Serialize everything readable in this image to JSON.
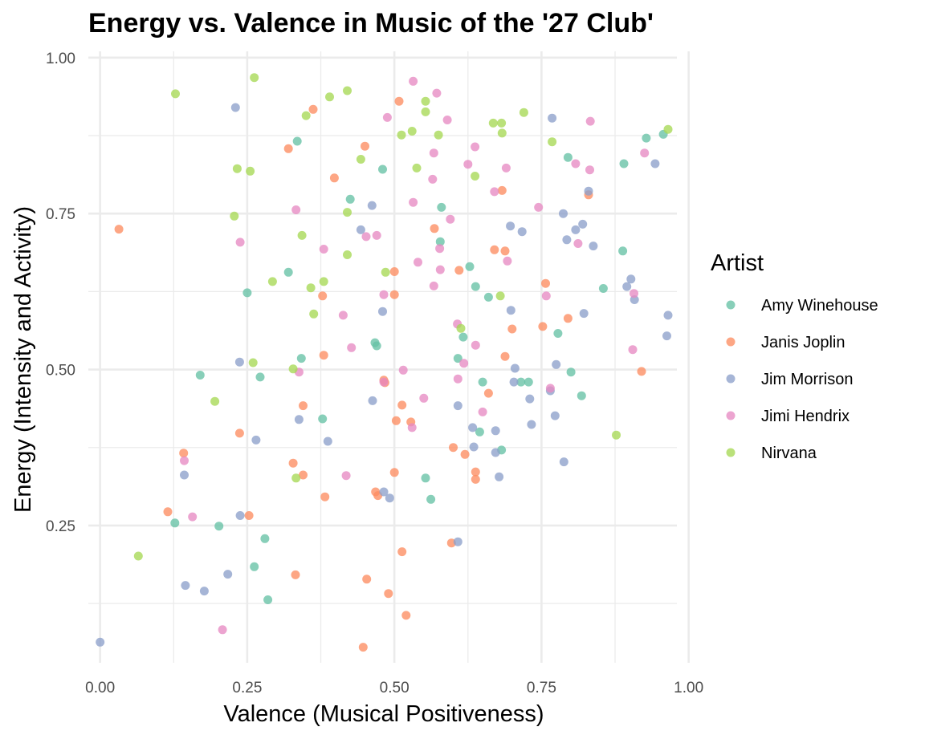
{
  "chart_data": {
    "type": "scatter",
    "title": "Energy vs. Valence in Music of the '27 Club'",
    "xlabel": "Valence (Musical Positiveness)",
    "ylabel": "Energy (Intensity and Activity)",
    "xlim": [
      -0.02,
      0.98
    ],
    "ylim": [
      0.03,
      1.01
    ],
    "x_ticks": [
      {
        "value": 0.0,
        "label": "0.00"
      },
      {
        "value": 0.25,
        "label": "0.25"
      },
      {
        "value": 0.5,
        "label": "0.50"
      },
      {
        "value": 0.75,
        "label": "0.75"
      },
      {
        "value": 1.0,
        "label": "1.00"
      }
    ],
    "y_ticks": [
      {
        "value": 0.25,
        "label": "0.25"
      },
      {
        "value": 0.5,
        "label": "0.50"
      },
      {
        "value": 0.75,
        "label": "0.75"
      },
      {
        "value": 1.0,
        "label": "1.00"
      }
    ],
    "grid": true,
    "legend": {
      "title": "Artist",
      "placement": "right"
    },
    "series": [
      {
        "name": "Amy Winehouse",
        "color": "#66c2a5",
        "points": [
          [
            0.335,
            0.866
          ],
          [
            0.48,
            0.821
          ],
          [
            0.425,
            0.773
          ],
          [
            0.58,
            0.76
          ],
          [
            0.578,
            0.705
          ],
          [
            0.32,
            0.656
          ],
          [
            0.25,
            0.623
          ],
          [
            0.628,
            0.665
          ],
          [
            0.638,
            0.633
          ],
          [
            0.66,
            0.616
          ],
          [
            0.617,
            0.552
          ],
          [
            0.608,
            0.518
          ],
          [
            0.467,
            0.543
          ],
          [
            0.47,
            0.538
          ],
          [
            0.342,
            0.518
          ],
          [
            0.17,
            0.491
          ],
          [
            0.272,
            0.488
          ],
          [
            0.65,
            0.48
          ],
          [
            0.715,
            0.48
          ],
          [
            0.728,
            0.48
          ],
          [
            0.778,
            0.558
          ],
          [
            0.855,
            0.63
          ],
          [
            0.888,
            0.69
          ],
          [
            0.8,
            0.496
          ],
          [
            0.818,
            0.458
          ],
          [
            0.645,
            0.4
          ],
          [
            0.682,
            0.371
          ],
          [
            0.378,
            0.421
          ],
          [
            0.553,
            0.326
          ],
          [
            0.562,
            0.292
          ],
          [
            0.127,
            0.254
          ],
          [
            0.202,
            0.249
          ],
          [
            0.28,
            0.229
          ],
          [
            0.262,
            0.184
          ],
          [
            0.285,
            0.131
          ],
          [
            0.928,
            0.871
          ],
          [
            0.957,
            0.877
          ],
          [
            0.795,
            0.84
          ],
          [
            0.89,
            0.83
          ]
        ]
      },
      {
        "name": "Janis Joplin",
        "color": "#fc8d62",
        "points": [
          [
            0.032,
            0.725
          ],
          [
            0.362,
            0.917
          ],
          [
            0.32,
            0.854
          ],
          [
            0.45,
            0.858
          ],
          [
            0.508,
            0.93
          ],
          [
            0.398,
            0.807
          ],
          [
            0.683,
            0.787
          ],
          [
            0.83,
            0.78
          ],
          [
            0.568,
            0.726
          ],
          [
            0.67,
            0.692
          ],
          [
            0.688,
            0.69
          ],
          [
            0.5,
            0.657
          ],
          [
            0.61,
            0.659
          ],
          [
            0.757,
            0.638
          ],
          [
            0.378,
            0.618
          ],
          [
            0.5,
            0.62
          ],
          [
            0.795,
            0.582
          ],
          [
            0.752,
            0.569
          ],
          [
            0.7,
            0.565
          ],
          [
            0.38,
            0.523
          ],
          [
            0.688,
            0.521
          ],
          [
            0.92,
            0.497
          ],
          [
            0.482,
            0.483
          ],
          [
            0.484,
            0.479
          ],
          [
            0.66,
            0.462
          ],
          [
            0.345,
            0.442
          ],
          [
            0.513,
            0.443
          ],
          [
            0.237,
            0.398
          ],
          [
            0.503,
            0.418
          ],
          [
            0.528,
            0.416
          ],
          [
            0.6,
            0.375
          ],
          [
            0.62,
            0.364
          ],
          [
            0.142,
            0.366
          ],
          [
            0.328,
            0.35
          ],
          [
            0.345,
            0.331
          ],
          [
            0.5,
            0.335
          ],
          [
            0.638,
            0.336
          ],
          [
            0.638,
            0.324
          ],
          [
            0.468,
            0.304
          ],
          [
            0.472,
            0.298
          ],
          [
            0.382,
            0.296
          ],
          [
            0.115,
            0.272
          ],
          [
            0.253,
            0.266
          ],
          [
            0.597,
            0.222
          ],
          [
            0.513,
            0.208
          ],
          [
            0.332,
            0.171
          ],
          [
            0.453,
            0.164
          ],
          [
            0.49,
            0.141
          ],
          [
            0.52,
            0.106
          ],
          [
            0.447,
            0.055
          ]
        ]
      },
      {
        "name": "Jim Morrison",
        "color": "#8da0cb",
        "points": [
          [
            0.23,
            0.92
          ],
          [
            0.768,
            0.903
          ],
          [
            0.943,
            0.83
          ],
          [
            0.83,
            0.786
          ],
          [
            0.462,
            0.763
          ],
          [
            0.787,
            0.75
          ],
          [
            0.82,
            0.733
          ],
          [
            0.697,
            0.73
          ],
          [
            0.443,
            0.724
          ],
          [
            0.717,
            0.721
          ],
          [
            0.808,
            0.724
          ],
          [
            0.793,
            0.708
          ],
          [
            0.838,
            0.698
          ],
          [
            0.902,
            0.645
          ],
          [
            0.895,
            0.633
          ],
          [
            0.908,
            0.612
          ],
          [
            0.48,
            0.593
          ],
          [
            0.698,
            0.595
          ],
          [
            0.822,
            0.59
          ],
          [
            0.965,
            0.587
          ],
          [
            0.963,
            0.554
          ],
          [
            0.775,
            0.508
          ],
          [
            0.237,
            0.512
          ],
          [
            0.705,
            0.502
          ],
          [
            0.703,
            0.48
          ],
          [
            0.765,
            0.466
          ],
          [
            0.73,
            0.453
          ],
          [
            0.463,
            0.45
          ],
          [
            0.608,
            0.442
          ],
          [
            0.773,
            0.426
          ],
          [
            0.338,
            0.42
          ],
          [
            0.733,
            0.412
          ],
          [
            0.633,
            0.407
          ],
          [
            0.672,
            0.402
          ],
          [
            0.265,
            0.387
          ],
          [
            0.387,
            0.385
          ],
          [
            0.635,
            0.376
          ],
          [
            0.672,
            0.367
          ],
          [
            0.788,
            0.352
          ],
          [
            0.143,
            0.331
          ],
          [
            0.678,
            0.328
          ],
          [
            0.482,
            0.304
          ],
          [
            0.492,
            0.294
          ],
          [
            0.238,
            0.266
          ],
          [
            0.608,
            0.224
          ],
          [
            0.217,
            0.172
          ],
          [
            0.145,
            0.154
          ],
          [
            0.177,
            0.145
          ],
          [
            0.0,
            0.063
          ]
        ]
      },
      {
        "name": "Jimi Hendrix",
        "color": "#e78ac3",
        "points": [
          [
            0.532,
            0.962
          ],
          [
            0.572,
            0.943
          ],
          [
            0.488,
            0.904
          ],
          [
            0.59,
            0.9
          ],
          [
            0.833,
            0.898
          ],
          [
            0.637,
            0.857
          ],
          [
            0.567,
            0.847
          ],
          [
            0.925,
            0.847
          ],
          [
            0.808,
            0.83
          ],
          [
            0.625,
            0.829
          ],
          [
            0.69,
            0.823
          ],
          [
            0.832,
            0.82
          ],
          [
            0.565,
            0.805
          ],
          [
            0.67,
            0.785
          ],
          [
            0.532,
            0.768
          ],
          [
            0.333,
            0.756
          ],
          [
            0.745,
            0.76
          ],
          [
            0.595,
            0.741
          ],
          [
            0.238,
            0.704
          ],
          [
            0.812,
            0.702
          ],
          [
            0.452,
            0.713
          ],
          [
            0.47,
            0.715
          ],
          [
            0.38,
            0.693
          ],
          [
            0.577,
            0.694
          ],
          [
            0.54,
            0.672
          ],
          [
            0.692,
            0.674
          ],
          [
            0.578,
            0.66
          ],
          [
            0.907,
            0.622
          ],
          [
            0.567,
            0.634
          ],
          [
            0.482,
            0.62
          ],
          [
            0.758,
            0.618
          ],
          [
            0.413,
            0.587
          ],
          [
            0.607,
            0.573
          ],
          [
            0.638,
            0.539
          ],
          [
            0.427,
            0.535
          ],
          [
            0.905,
            0.532
          ],
          [
            0.618,
            0.51
          ],
          [
            0.515,
            0.499
          ],
          [
            0.338,
            0.496
          ],
          [
            0.608,
            0.485
          ],
          [
            0.482,
            0.48
          ],
          [
            0.765,
            0.47
          ],
          [
            0.55,
            0.454
          ],
          [
            0.65,
            0.432
          ],
          [
            0.53,
            0.407
          ],
          [
            0.143,
            0.354
          ],
          [
            0.418,
            0.33
          ],
          [
            0.157,
            0.264
          ],
          [
            0.208,
            0.083
          ]
        ]
      },
      {
        "name": "Nirvana",
        "color": "#a6d854",
        "points": [
          [
            0.262,
            0.968
          ],
          [
            0.128,
            0.942
          ],
          [
            0.42,
            0.947
          ],
          [
            0.39,
            0.937
          ],
          [
            0.553,
            0.93
          ],
          [
            0.553,
            0.913
          ],
          [
            0.72,
            0.912
          ],
          [
            0.35,
            0.907
          ],
          [
            0.668,
            0.895
          ],
          [
            0.682,
            0.895
          ],
          [
            0.965,
            0.885
          ],
          [
            0.53,
            0.882
          ],
          [
            0.512,
            0.876
          ],
          [
            0.575,
            0.876
          ],
          [
            0.683,
            0.879
          ],
          [
            0.768,
            0.865
          ],
          [
            0.443,
            0.837
          ],
          [
            0.538,
            0.823
          ],
          [
            0.233,
            0.822
          ],
          [
            0.255,
            0.818
          ],
          [
            0.637,
            0.81
          ],
          [
            0.42,
            0.752
          ],
          [
            0.228,
            0.746
          ],
          [
            0.343,
            0.715
          ],
          [
            0.42,
            0.684
          ],
          [
            0.485,
            0.656
          ],
          [
            0.293,
            0.641
          ],
          [
            0.38,
            0.641
          ],
          [
            0.358,
            0.631
          ],
          [
            0.68,
            0.618
          ],
          [
            0.363,
            0.589
          ],
          [
            0.613,
            0.566
          ],
          [
            0.26,
            0.511
          ],
          [
            0.328,
            0.501
          ],
          [
            0.195,
            0.449
          ],
          [
            0.877,
            0.395
          ],
          [
            0.333,
            0.326
          ],
          [
            0.065,
            0.201
          ]
        ]
      }
    ]
  }
}
